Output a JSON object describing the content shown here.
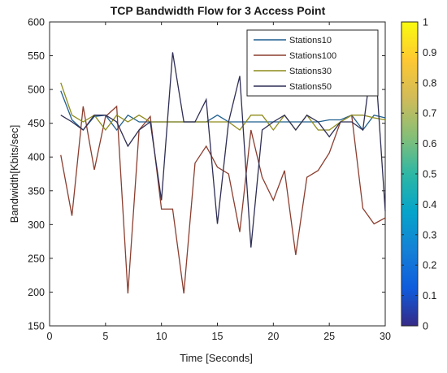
{
  "chart_data": {
    "type": "line",
    "title": "TCP Bandwidth Flow for 3 Access Point",
    "xlabel": "Time [Seconds]",
    "ylabel": "Bandwidth[Kbits/sec]",
    "xlim": [
      0,
      30
    ],
    "ylim": [
      150,
      600
    ],
    "x_ticks": [
      "0",
      "5",
      "10",
      "15",
      "20",
      "25",
      "30"
    ],
    "y_ticks": [
      "150",
      "200",
      "250",
      "300",
      "350",
      "400",
      "450",
      "500",
      "550",
      "600"
    ],
    "grid": false,
    "legend_position": "top-right",
    "x": [
      1,
      2,
      3,
      4,
      5,
      6,
      7,
      8,
      9,
      10,
      11,
      12,
      13,
      14,
      15,
      16,
      17,
      18,
      19,
      20,
      21,
      22,
      23,
      24,
      25,
      26,
      27,
      28,
      29,
      30
    ],
    "series": [
      {
        "name": "Stations10",
        "color": "#1f5f8f",
        "values": [
          498,
          455,
          440,
          460,
          462,
          440,
          462,
          452,
          452,
          452,
          452,
          452,
          452,
          452,
          462,
          452,
          452,
          452,
          452,
          452,
          452,
          452,
          452,
          452,
          455,
          455,
          462,
          440,
          462,
          458
        ]
      },
      {
        "name": "Stations100",
        "color": "#8b3e2f",
        "values": [
          403,
          313,
          475,
          381,
          460,
          475,
          198,
          440,
          460,
          323,
          323,
          198,
          391,
          416,
          385,
          375,
          289,
          440,
          370,
          336,
          380,
          255,
          370,
          380,
          406,
          452,
          462,
          324,
          301,
          310
        ]
      },
      {
        "name": "Stations30",
        "color": "#8e8a1a",
        "values": [
          510,
          462,
          452,
          462,
          440,
          462,
          452,
          462,
          452,
          452,
          452,
          452,
          452,
          452,
          452,
          452,
          440,
          462,
          462,
          440,
          462,
          440,
          462,
          440,
          440,
          452,
          462,
          462,
          458,
          455
        ]
      },
      {
        "name": "Stations50",
        "color": "#2e2e55",
        "values": [
          462,
          452,
          440,
          462,
          462,
          452,
          416,
          440,
          452,
          336,
          555,
          452,
          452,
          485,
          301,
          452,
          520,
          266,
          440,
          452,
          462,
          440,
          462,
          452,
          430,
          452,
          452,
          440,
          567,
          320
        ]
      }
    ],
    "colorbar": {
      "min": 0,
      "max": 1,
      "ticks": [
        "0",
        "0.1",
        "0.2",
        "0.3",
        "0.4",
        "0.5",
        "0.6",
        "0.7",
        "0.8",
        "0.9",
        "1"
      ],
      "colormap": [
        "#352a87",
        "#0f5cdd",
        "#1481d6",
        "#06a4ca",
        "#2eb7a4",
        "#87bf77",
        "#d1bb59",
        "#fec832",
        "#f9fb0e"
      ]
    }
  }
}
